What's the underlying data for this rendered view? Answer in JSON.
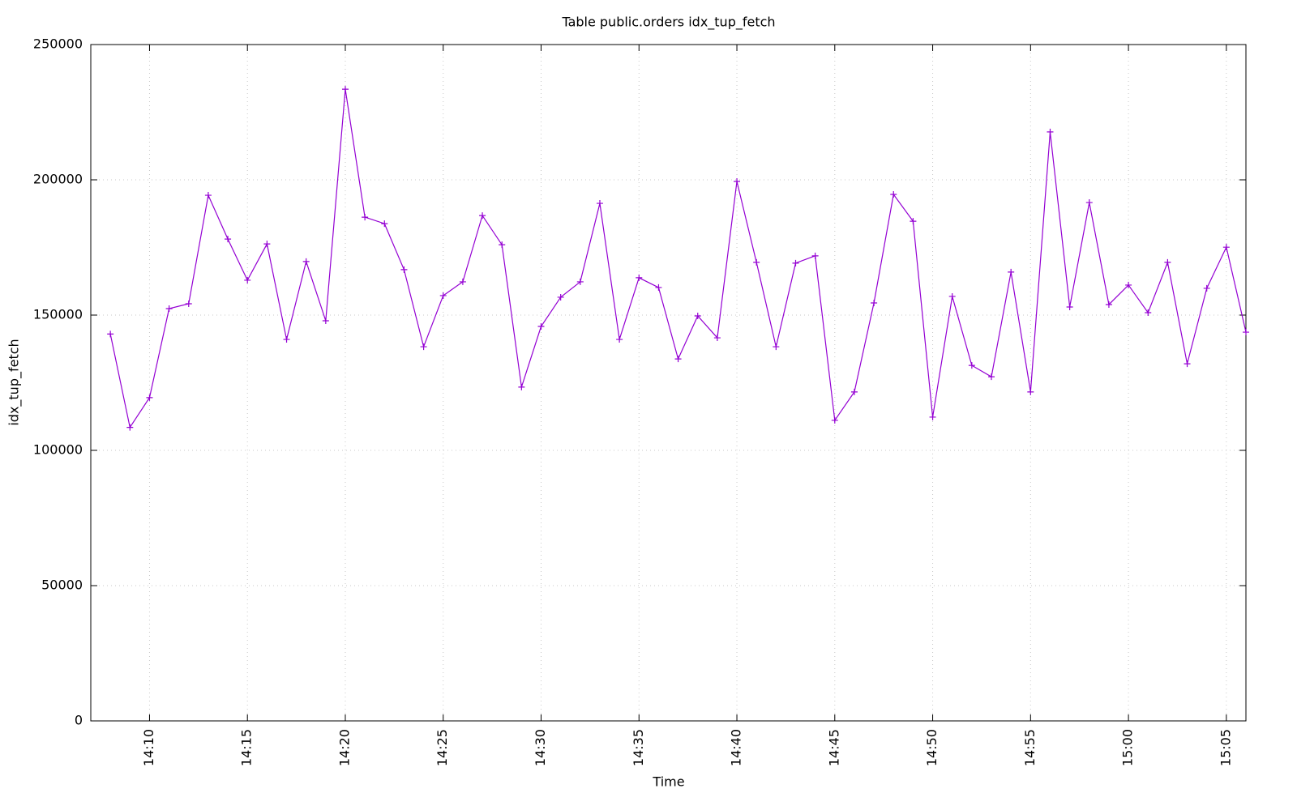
{
  "chart_data": {
    "type": "line",
    "title": "Table public.orders idx_tup_fetch",
    "x_label": "Time",
    "y_label": "idx_tup_fetch",
    "x": [
      "14:08",
      "14:09",
      "14:10",
      "14:11",
      "14:12",
      "14:13",
      "14:14",
      "14:15",
      "14:16",
      "14:17",
      "14:18",
      "14:19",
      "14:20",
      "14:21",
      "14:22",
      "14:23",
      "14:24",
      "14:25",
      "14:26",
      "14:27",
      "14:28",
      "14:29",
      "14:30",
      "14:31",
      "14:32",
      "14:33",
      "14:34",
      "14:35",
      "14:36",
      "14:37",
      "14:38",
      "14:39",
      "14:40",
      "14:41",
      "14:42",
      "14:43",
      "14:44",
      "14:45",
      "14:46",
      "14:47",
      "14:48",
      "14:49",
      "14:50",
      "14:51",
      "14:52",
      "14:53",
      "14:54",
      "14:55",
      "14:56",
      "14:57",
      "14:58",
      "14:59",
      "15:00",
      "15:01",
      "15:02",
      "15:03",
      "15:04",
      "15:05",
      "15:06"
    ],
    "values": [
      143000,
      108500,
      119500,
      152400,
      154200,
      194300,
      178100,
      162900,
      176300,
      141000,
      169800,
      147900,
      233500,
      186200,
      183800,
      166800,
      138300,
      157200,
      162300,
      186800,
      176000,
      123400,
      145800,
      156600,
      162300,
      191300,
      141000,
      163800,
      160200,
      133800,
      149700,
      141600,
      199400,
      169500,
      138300,
      169200,
      171900,
      111100,
      121600,
      154500,
      194600,
      184700,
      112300,
      156900,
      131400,
      127200,
      165900,
      121600,
      217700,
      153000,
      191600,
      153900,
      161100,
      150900,
      169500,
      132000,
      159900,
      175100,
      143700
    ],
    "color": "#9400d3",
    "xlim": [
      "14:07",
      "15:06"
    ],
    "xticks": [
      "14:10",
      "14:15",
      "14:20",
      "14:25",
      "14:30",
      "14:35",
      "14:40",
      "14:45",
      "14:50",
      "14:55",
      "15:00",
      "15:05"
    ],
    "ylim": [
      0,
      250000
    ],
    "yticks": [
      0,
      50000,
      100000,
      150000,
      200000,
      250000
    ],
    "grid": true
  }
}
